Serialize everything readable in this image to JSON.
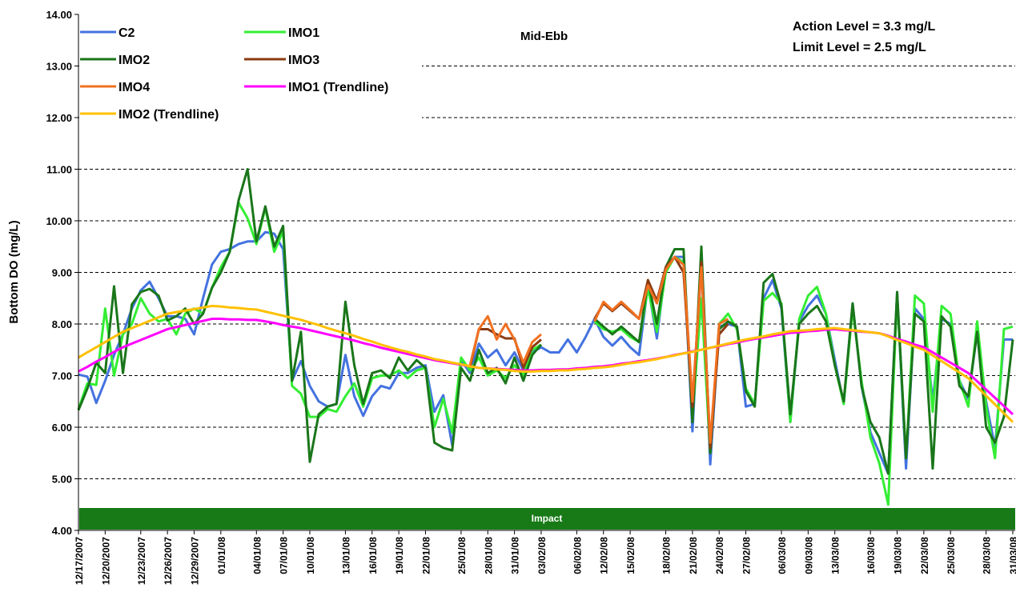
{
  "chart_data": {
    "type": "line",
    "y_label": "Bottom DO (mg/L)",
    "annotations": {
      "mid_ebb": "Mid-Ebb",
      "action_level": "Action Level = 3.3 mg/L",
      "limit_level": "Limit Level = 2.5 mg/L",
      "impact": "Impact"
    },
    "ylim": [
      4,
      14
    ],
    "yticks": [
      {
        "value": 4,
        "label": "4.00"
      },
      {
        "value": 5,
        "label": "5.00"
      },
      {
        "value": 6,
        "label": "6.00"
      },
      {
        "value": 7,
        "label": "7.00"
      },
      {
        "value": 8,
        "label": "8.00"
      },
      {
        "value": 9,
        "label": "9.00"
      },
      {
        "value": 10,
        "label": "10.00"
      },
      {
        "value": 11,
        "label": "11.00"
      },
      {
        "value": 12,
        "label": "12.00"
      },
      {
        "value": 13,
        "label": "13.00"
      },
      {
        "value": 14,
        "label": "14.00"
      }
    ],
    "grid": true,
    "categories": [
      "12/17/2007",
      null,
      null,
      "12/20/2007",
      null,
      null,
      null,
      "12/23/2007",
      null,
      null,
      "12/26/2007",
      null,
      null,
      "12/29/2007",
      null,
      null,
      "01/01/08",
      null,
      null,
      null,
      "04/01/08",
      null,
      null,
      "07/01/08",
      null,
      null,
      "10/01/08",
      null,
      null,
      null,
      "13/01/08",
      null,
      null,
      "16/01/08",
      null,
      null,
      "19/01/08",
      null,
      null,
      "22/01/08",
      null,
      null,
      null,
      "25/01/08",
      null,
      null,
      "28/01/08",
      null,
      null,
      "31/01/08",
      null,
      null,
      "03/02/08",
      null,
      null,
      null,
      "06/02/08",
      null,
      null,
      "12/02/08",
      null,
      null,
      "15/02/08",
      null,
      null,
      null,
      "18/02/08",
      null,
      null,
      "21/02/08",
      null,
      null,
      "24/02/08",
      null,
      null,
      "27/02/08",
      null,
      null,
      null,
      "06/03/08",
      null,
      null,
      "09/03/08",
      null,
      null,
      "13/03/08",
      null,
      null,
      null,
      "16/03/08",
      null,
      null,
      "19/03/08",
      null,
      null,
      "22/03/08",
      null,
      null,
      "25/03/08",
      null,
      null,
      null,
      "28/03/08",
      null,
      null,
      "31/03/08"
    ],
    "series": [
      {
        "name": "C2",
        "color": "#4472e0",
        "values": [
          7.02,
          6.98,
          6.47,
          6.9,
          7.4,
          7.8,
          8.3,
          8.65,
          8.82,
          8.5,
          8.15,
          8.15,
          8.1,
          7.8,
          8.5,
          9.15,
          9.4,
          9.45,
          9.55,
          9.6,
          9.6,
          9.78,
          9.75,
          9.45,
          6.9,
          7.28,
          6.8,
          6.5,
          6.4,
          6.45,
          7.4,
          6.6,
          6.22,
          6.6,
          6.8,
          6.75,
          7.05,
          7.05,
          7.15,
          7.2,
          6.3,
          6.62,
          5.65,
          7.3,
          7.05,
          7.62,
          7.35,
          7.5,
          7.2,
          7.45,
          7.1,
          7.45,
          7.55,
          7.45,
          7.45,
          7.7,
          7.45,
          7.75,
          8.1,
          7.75,
          7.58,
          7.75,
          7.55,
          7.4,
          8.75,
          7.72,
          9.1,
          9.3,
          9.3,
          5.92,
          9.2,
          5.28,
          7.95,
          8.0,
          7.95,
          6.4,
          6.45,
          8.5,
          8.85,
          8.3,
          6.1,
          8.05,
          8.35,
          8.55,
          8.2,
          7.3,
          6.45,
          8.4,
          6.8,
          5.9,
          5.5,
          5.1,
          8.6,
          5.2,
          8.3,
          8.1,
          6.5,
          8.1,
          8.0,
          6.9,
          6.55,
          7.85,
          6.5,
          5.6,
          7.7,
          7.7
        ]
      },
      {
        "name": "IMO1",
        "color": "#33ee33",
        "values": [
          6.35,
          6.85,
          6.82,
          8.3,
          7.0,
          7.8,
          8.0,
          8.5,
          8.2,
          8.05,
          8.1,
          7.8,
          8.2,
          8.3,
          8.2,
          8.7,
          9.1,
          9.4,
          10.35,
          10.05,
          9.55,
          10.25,
          9.4,
          9.8,
          6.8,
          6.65,
          6.2,
          6.2,
          6.35,
          6.3,
          6.6,
          6.85,
          6.4,
          6.95,
          7.0,
          7.0,
          7.1,
          6.95,
          7.1,
          7.15,
          6.0,
          6.55,
          5.9,
          7.35,
          7.1,
          7.35,
          7.0,
          7.1,
          6.95,
          7.2,
          7.0,
          7.5,
          7.6,
          null,
          null,
          null,
          null,
          null,
          8.05,
          7.9,
          7.85,
          7.9,
          7.75,
          7.65,
          8.7,
          7.85,
          9.0,
          9.3,
          9.2,
          6.2,
          8.5,
          5.5,
          8.0,
          8.2,
          7.9,
          6.75,
          6.45,
          8.45,
          8.6,
          8.4,
          6.1,
          8.1,
          8.55,
          8.72,
          8.2,
          7.2,
          6.45,
          8.3,
          6.9,
          5.8,
          5.3,
          4.5,
          8.55,
          5.4,
          8.55,
          8.4,
          6.3,
          8.35,
          8.2,
          6.9,
          6.4,
          8.05,
          6.4,
          5.4,
          7.9,
          7.95
        ]
      },
      {
        "name": "IMO2",
        "color": "#1a761a",
        "values": [
          6.33,
          6.75,
          7.25,
          7.05,
          8.73,
          7.05,
          8.38,
          8.62,
          8.68,
          8.55,
          8.07,
          8.15,
          8.3,
          8.0,
          8.2,
          8.7,
          9.0,
          9.4,
          10.4,
          11.0,
          9.6,
          10.28,
          9.5,
          9.9,
          6.9,
          7.85,
          5.33,
          6.25,
          6.4,
          6.45,
          8.43,
          7.2,
          6.45,
          7.05,
          7.1,
          6.95,
          7.35,
          7.1,
          7.3,
          7.15,
          5.7,
          5.6,
          5.55,
          7.15,
          6.9,
          7.5,
          7.05,
          7.15,
          6.85,
          7.35,
          6.9,
          7.4,
          7.6,
          null,
          null,
          null,
          null,
          null,
          8.1,
          7.95,
          7.8,
          7.95,
          7.8,
          7.65,
          8.85,
          8.0,
          9.1,
          9.45,
          9.45,
          6.1,
          9.5,
          5.5,
          7.9,
          8.05,
          7.95,
          6.7,
          6.4,
          8.8,
          8.97,
          8.35,
          6.25,
          8.0,
          8.2,
          8.35,
          8.05,
          7.2,
          6.5,
          8.4,
          6.8,
          6.1,
          5.8,
          5.1,
          8.62,
          5.4,
          8.2,
          8.05,
          5.2,
          8.15,
          7.95,
          6.8,
          6.6,
          7.85,
          6.0,
          5.7,
          6.2,
          7.7
        ]
      },
      {
        "name": "IMO3",
        "color": "#8b3a12",
        "values": [
          null,
          null,
          null,
          null,
          null,
          null,
          null,
          null,
          null,
          null,
          null,
          null,
          null,
          null,
          null,
          null,
          null,
          null,
          null,
          null,
          null,
          null,
          null,
          null,
          null,
          null,
          null,
          null,
          null,
          null,
          null,
          null,
          null,
          null,
          null,
          null,
          null,
          null,
          null,
          null,
          null,
          null,
          null,
          null,
          7.15,
          7.9,
          7.9,
          7.8,
          7.72,
          7.72,
          7.15,
          7.55,
          7.7,
          null,
          null,
          null,
          null,
          null,
          8.1,
          8.4,
          8.25,
          8.4,
          8.25,
          8.1,
          8.85,
          8.45,
          9.1,
          9.3,
          9.0,
          6.4,
          9.2,
          5.6,
          7.8,
          8.0,
          null,
          null,
          null,
          null,
          null,
          null,
          null,
          null,
          null,
          null,
          null,
          null,
          null,
          null,
          null,
          null,
          null,
          null,
          null,
          null,
          null,
          null,
          null,
          null,
          null,
          null,
          null,
          null,
          null,
          null,
          null,
          null
        ]
      },
      {
        "name": "IMO4",
        "color": "#f07020",
        "values": [
          null,
          null,
          null,
          null,
          null,
          null,
          null,
          null,
          null,
          null,
          null,
          null,
          null,
          null,
          null,
          null,
          null,
          null,
          null,
          null,
          null,
          null,
          null,
          null,
          null,
          null,
          null,
          null,
          null,
          null,
          null,
          null,
          null,
          null,
          null,
          null,
          null,
          null,
          null,
          null,
          null,
          null,
          null,
          null,
          7.2,
          7.9,
          8.15,
          7.7,
          8.0,
          7.7,
          7.25,
          7.65,
          7.8,
          null,
          null,
          null,
          null,
          null,
          8.05,
          8.43,
          8.27,
          8.43,
          8.27,
          8.1,
          8.75,
          8.4,
          9.05,
          9.3,
          9.15,
          6.5,
          9.1,
          5.7,
          8.0,
          8.1,
          null,
          null,
          null,
          null,
          null,
          null,
          null,
          null,
          null,
          null,
          null,
          null,
          null,
          null,
          null,
          null,
          null,
          null,
          null,
          null,
          null,
          null,
          null,
          null,
          null,
          null,
          null,
          null,
          null,
          null,
          null,
          null
        ]
      },
      {
        "name": "IMO1 (Trendline)",
        "color": "#ff00ff",
        "values": [
          7.08,
          7.17,
          7.27,
          7.36,
          7.46,
          7.55,
          7.62,
          7.69,
          7.76,
          7.83,
          7.9,
          7.94,
          7.98,
          8.02,
          8.06,
          8.1,
          8.1,
          8.09,
          8.09,
          8.08,
          8.08,
          8.05,
          8.02,
          7.98,
          7.95,
          7.92,
          7.88,
          7.84,
          7.8,
          7.76,
          7.72,
          7.68,
          7.63,
          7.59,
          7.54,
          7.5,
          7.46,
          7.42,
          7.38,
          7.34,
          7.3,
          7.27,
          7.24,
          7.21,
          7.18,
          7.15,
          7.14,
          7.13,
          7.12,
          7.11,
          7.1,
          7.1,
          7.11,
          7.11,
          7.12,
          7.12,
          7.14,
          7.15,
          7.17,
          7.18,
          7.2,
          7.23,
          7.25,
          7.28,
          7.3,
          7.33,
          7.36,
          7.4,
          7.43,
          7.47,
          7.5,
          7.54,
          7.57,
          7.61,
          7.64,
          7.68,
          7.71,
          7.74,
          7.77,
          7.8,
          7.83,
          7.84,
          7.86,
          7.87,
          7.89,
          7.9,
          7.88,
          7.87,
          7.85,
          7.84,
          7.82,
          7.77,
          7.71,
          7.66,
          7.6,
          7.55,
          7.45,
          7.35,
          7.25,
          7.15,
          7.05,
          6.89,
          6.73,
          6.57,
          6.41,
          6.25
        ]
      },
      {
        "name": "IMO2 (Trendline)",
        "color": "#ffc000",
        "values": [
          7.35,
          7.45,
          7.55,
          7.65,
          7.75,
          7.85,
          7.92,
          7.99,
          8.06,
          8.13,
          8.2,
          8.23,
          8.26,
          8.29,
          8.32,
          8.35,
          8.34,
          8.32,
          8.31,
          8.29,
          8.28,
          8.24,
          8.2,
          8.16,
          8.12,
          8.08,
          8.03,
          7.98,
          7.92,
          7.87,
          7.82,
          7.77,
          7.71,
          7.66,
          7.6,
          7.55,
          7.5,
          7.46,
          7.41,
          7.37,
          7.32,
          7.29,
          7.25,
          7.22,
          7.18,
          7.15,
          7.14,
          7.12,
          7.11,
          7.09,
          7.08,
          7.08,
          7.09,
          7.09,
          7.1,
          7.1,
          7.12,
          7.13,
          7.15,
          7.16,
          7.18,
          7.21,
          7.24,
          7.26,
          7.29,
          7.32,
          7.36,
          7.39,
          7.43,
          7.46,
          7.5,
          7.54,
          7.58,
          7.62,
          7.66,
          7.7,
          7.73,
          7.76,
          7.8,
          7.83,
          7.86,
          7.87,
          7.88,
          7.9,
          7.91,
          7.92,
          7.9,
          7.88,
          7.86,
          7.84,
          7.82,
          7.76,
          7.69,
          7.63,
          7.56,
          7.5,
          7.39,
          7.28,
          7.17,
          7.06,
          6.95,
          6.78,
          6.61,
          6.44,
          6.27,
          6.1
        ]
      }
    ]
  }
}
